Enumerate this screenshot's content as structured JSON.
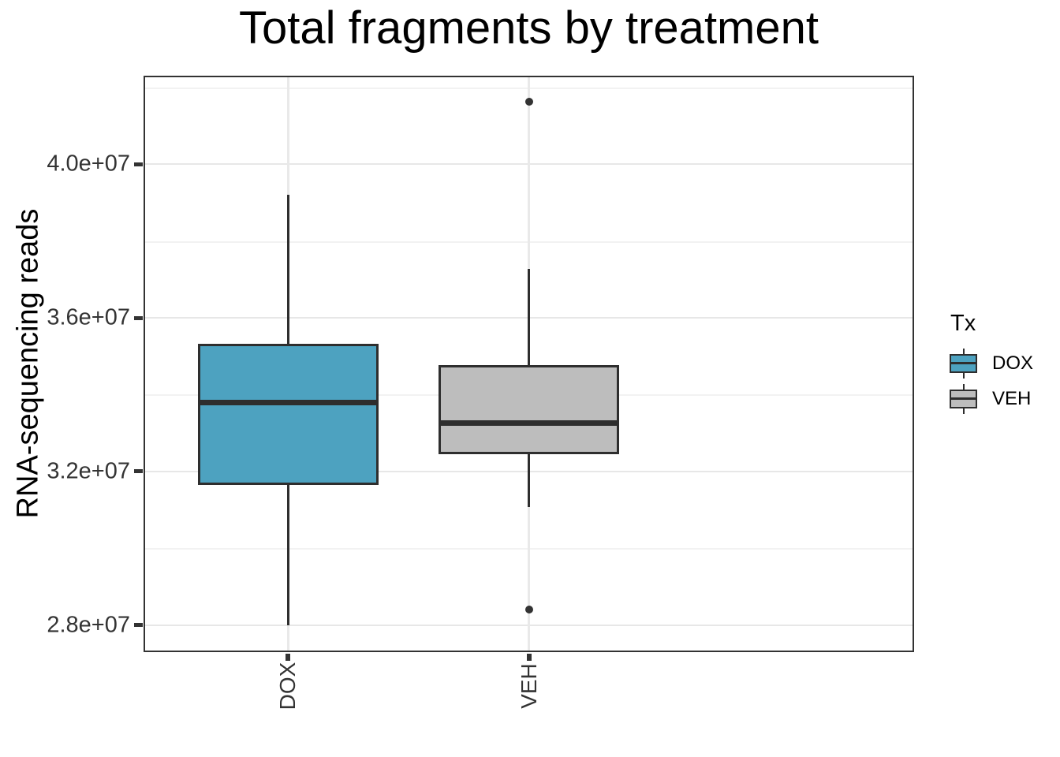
{
  "title": "Total fragments by treatment",
  "y_axis": {
    "title": "RNA-sequencing reads",
    "ticks": [
      {
        "value": 40000000,
        "label": "4.0e+07"
      },
      {
        "value": 36000000,
        "label": "3.6e+07"
      },
      {
        "value": 32000000,
        "label": "3.2e+07"
      },
      {
        "value": 28000000,
        "label": "2.8e+07"
      }
    ],
    "minor_ticks": [
      42000000,
      38000000,
      34000000,
      30000000
    ]
  },
  "x_axis": {
    "categories": [
      "DOX",
      "VEH"
    ]
  },
  "legend": {
    "title": "Tx",
    "entries": [
      {
        "label": "DOX",
        "fill": "#4da2c0"
      },
      {
        "label": "VEH",
        "fill": "#bdbdbd"
      }
    ]
  },
  "colors": {
    "dox_fill": "#4da2c0",
    "veh_fill": "#bdbdbd",
    "box_stroke": "#2e2e2e",
    "grid_major": "#e7e7e7",
    "grid_minor": "#f2f2f2",
    "axis_text": "#333333"
  },
  "chart_data": {
    "type": "boxplot",
    "title": "Total fragments by treatment",
    "xlabel": "",
    "ylabel": "RNA-sequencing reads",
    "categories": [
      "DOX",
      "VEH"
    ],
    "ylim": [
      27300000,
      42300000
    ],
    "y_major_ticks": [
      28000000,
      32000000,
      36000000,
      40000000
    ],
    "y_minor_ticks": [
      30000000,
      34000000,
      38000000,
      42000000
    ],
    "grid": true,
    "legend_title": "Tx",
    "legend_position": "right",
    "series": [
      {
        "name": "DOX",
        "fill": "#4da2c0",
        "whisker_low": 27990000,
        "q1": 31640000,
        "median": 33800000,
        "q3": 35320000,
        "whisker_high": 39200000,
        "outliers": []
      },
      {
        "name": "VEH",
        "fill": "#bdbdbd",
        "whisker_low": 31080000,
        "q1": 32450000,
        "median": 33270000,
        "q3": 34770000,
        "whisker_high": 37270000,
        "outliers": [
          41620000,
          28410000
        ]
      }
    ]
  }
}
